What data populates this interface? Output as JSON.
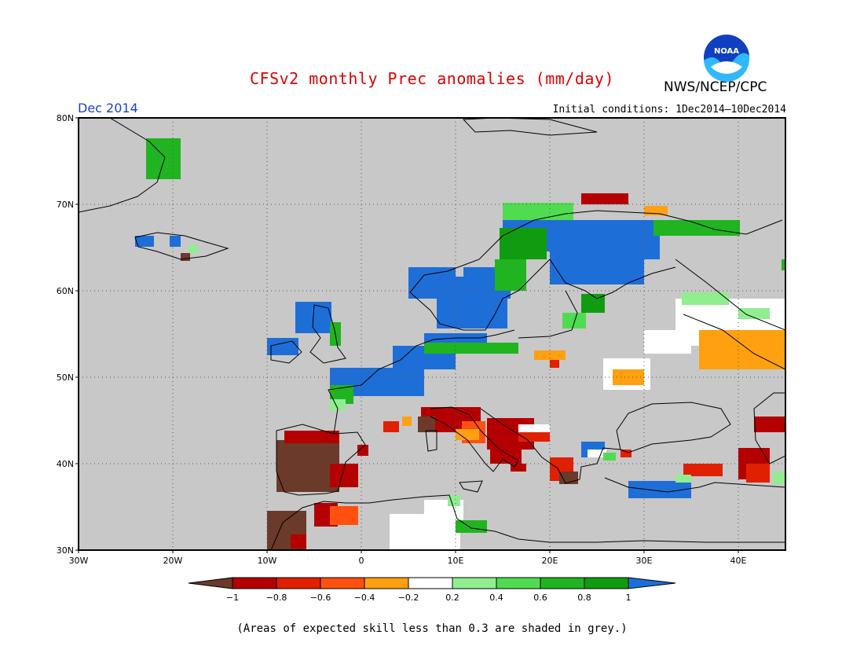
{
  "header": {
    "title": "CFSv2 monthly Prec anomalies (mm/day)",
    "agency": "NWS/NCEP/CPC",
    "logo_text": "NOAA",
    "month": "Dec 2014",
    "initial_conditions": "Initial conditions: 1Dec2014—10Dec2014"
  },
  "map": {
    "lon_range": [
      -30,
      45
    ],
    "lat_range": [
      30,
      80
    ],
    "lat_labels": [
      "80N",
      "70N",
      "60N",
      "50N",
      "40N",
      "30N"
    ],
    "lon_labels": [
      "30W",
      "20W",
      "10W",
      "0",
      "10E",
      "20E",
      "30E",
      "40E"
    ],
    "background_color": "#c8c8c8"
  },
  "legend": {
    "tick_labels": [
      "−1",
      "−0.8",
      "−0.6",
      "−0.4",
      "−0.2",
      "0.2",
      "0.4",
      "0.6",
      "0.8",
      "1"
    ],
    "colors": [
      "#6b3a2a",
      "#b40000",
      "#e02000",
      "#ff5010",
      "#ffa010",
      "#ffffff",
      "#90ee90",
      "#50dc50",
      "#20b420",
      "#109c10",
      "#1e6ed8"
    ]
  },
  "footnote": "(Areas of expected skill less than 0.3 are shaded in grey.)"
}
